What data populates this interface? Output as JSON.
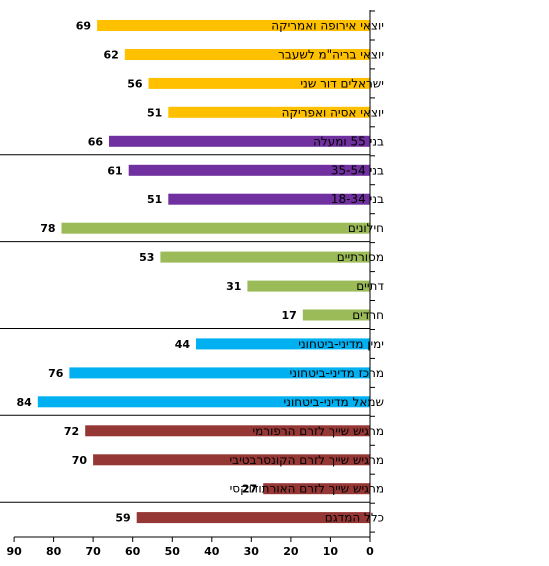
{
  "chart_data": {
    "type": "bar",
    "orientation": "horizontal",
    "x_direction": "reversed",
    "xlim": [
      0,
      90
    ],
    "x_ticks": [
      90,
      80,
      70,
      60,
      50,
      40,
      30,
      20,
      10,
      0
    ],
    "title": "",
    "xlabel": "",
    "ylabel": "",
    "legend": "none",
    "grid": false,
    "categories": [
      "יוצאי אירופה ואמריקה",
      "יוצאי בריה\"מ לשעבר",
      "ישראלים דור שני",
      "יוצאי אסיה ואפריקה",
      "בני 55 ומעלה",
      "בני 35-54",
      "בני 18-34",
      "חילונים",
      "מסורתיים",
      "דתיים",
      "חרדים",
      "ימין מדיני-ביטחוני",
      "מרכז מדיני-ביטחוני",
      "שמאל מדיני-ביטחוני",
      "מרגיש שייך לזרם הרפורמי",
      "מרגיש שייך לזרם הקונסרבטיבי",
      "מרגיש שייך לזרם האורתודוקסי",
      "כלל המדגם"
    ],
    "values": [
      69,
      62,
      56,
      51,
      66,
      61,
      51,
      78,
      53,
      31,
      17,
      44,
      76,
      84,
      72,
      70,
      27,
      59
    ],
    "colors": [
      "#ffc000",
      "#ffc000",
      "#ffc000",
      "#ffc000",
      "#7030a0",
      "#7030a0",
      "#7030a0",
      "#9bbb59",
      "#9bbb59",
      "#9bbb59",
      "#9bbb59",
      "#00b0f0",
      "#00b0f0",
      "#00b0f0",
      "#953735",
      "#953735",
      "#953735",
      "#953735"
    ],
    "group_separators_after_index": [
      4,
      7,
      10,
      13,
      16
    ]
  }
}
